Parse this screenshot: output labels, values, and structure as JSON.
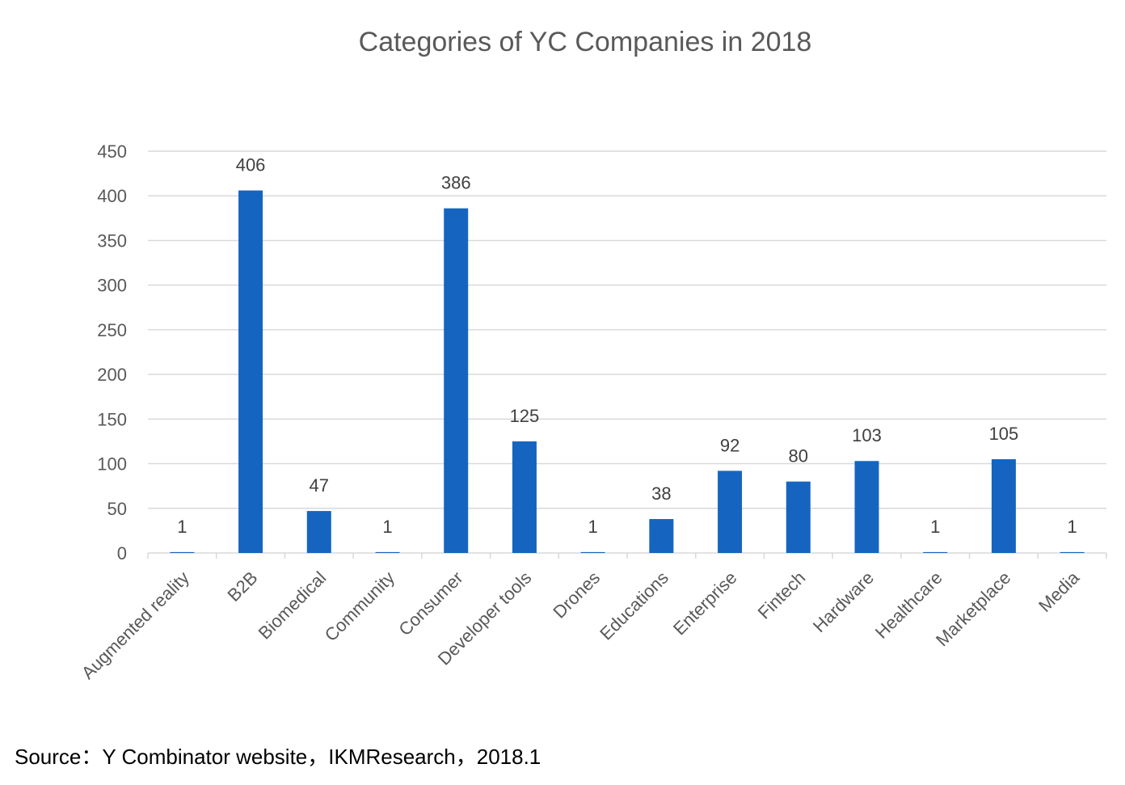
{
  "chart_data": {
    "type": "bar",
    "title": "Categories of YC Companies in 2018",
    "categories": [
      "Augmented reality",
      "B2B",
      "Biomedical",
      "Community",
      "Consumer",
      "Developer tools",
      "Drones",
      "Educations",
      "Enterprise",
      "Fintech",
      "Hardware",
      "Healthcare",
      "Marketplace",
      "Media"
    ],
    "values": [
      1,
      406,
      47,
      1,
      386,
      125,
      1,
      38,
      92,
      80,
      103,
      1,
      105,
      1
    ],
    "ylim": [
      0,
      450
    ],
    "yticks": [
      "0",
      "50",
      "100",
      "150",
      "200",
      "250",
      "300",
      "350",
      "400",
      "450"
    ],
    "xlabel": "",
    "ylabel": "",
    "grid": true,
    "legend": "none",
    "bar_color": "#1565c0",
    "grid_color": "#d9d9d9"
  },
  "source": "Source：Y Combinator website，IKMResearch，2018.1"
}
